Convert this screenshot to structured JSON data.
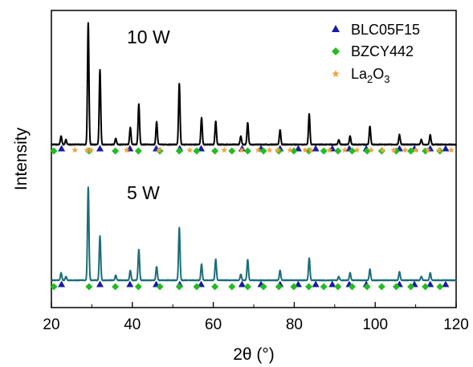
{
  "chart_data": {
    "type": "line",
    "xlabel": "2θ (°)",
    "ylabel": "Intensity",
    "xlim": [
      20,
      120
    ],
    "x_ticks": [
      20,
      40,
      60,
      80,
      100,
      120
    ],
    "grid": false,
    "legend_placement": "top-right",
    "series": [
      {
        "label": "10 W",
        "color": "#000000",
        "peaks": [
          {
            "x": 22.4,
            "h": 0.07
          },
          {
            "x": 23.6,
            "h": 0.04
          },
          {
            "x": 29.1,
            "h": 1.0
          },
          {
            "x": 32.0,
            "h": 0.61
          },
          {
            "x": 35.9,
            "h": 0.05
          },
          {
            "x": 39.5,
            "h": 0.14
          },
          {
            "x": 41.6,
            "h": 0.33
          },
          {
            "x": 46.0,
            "h": 0.19
          },
          {
            "x": 51.6,
            "h": 0.5
          },
          {
            "x": 57.1,
            "h": 0.22
          },
          {
            "x": 60.6,
            "h": 0.19
          },
          {
            "x": 66.8,
            "h": 0.07
          },
          {
            "x": 68.5,
            "h": 0.18
          },
          {
            "x": 76.5,
            "h": 0.12
          },
          {
            "x": 83.7,
            "h": 0.25
          },
          {
            "x": 91.0,
            "h": 0.04
          },
          {
            "x": 93.8,
            "h": 0.07
          },
          {
            "x": 98.7,
            "h": 0.15
          },
          {
            "x": 106.0,
            "h": 0.08
          },
          {
            "x": 111.4,
            "h": 0.04
          },
          {
            "x": 113.6,
            "h": 0.08
          }
        ]
      },
      {
        "label": "5 W",
        "color": "#1b6e79",
        "peaks": [
          {
            "x": 22.4,
            "h": 0.06
          },
          {
            "x": 23.6,
            "h": 0.03
          },
          {
            "x": 29.1,
            "h": 0.76
          },
          {
            "x": 32.0,
            "h": 0.36
          },
          {
            "x": 35.9,
            "h": 0.04
          },
          {
            "x": 39.5,
            "h": 0.08
          },
          {
            "x": 41.6,
            "h": 0.25
          },
          {
            "x": 46.0,
            "h": 0.11
          },
          {
            "x": 51.6,
            "h": 0.43
          },
          {
            "x": 57.1,
            "h": 0.13
          },
          {
            "x": 60.6,
            "h": 0.17
          },
          {
            "x": 66.8,
            "h": 0.05
          },
          {
            "x": 68.5,
            "h": 0.17
          },
          {
            "x": 76.5,
            "h": 0.08
          },
          {
            "x": 83.7,
            "h": 0.18
          },
          {
            "x": 91.0,
            "h": 0.03
          },
          {
            "x": 93.8,
            "h": 0.06
          },
          {
            "x": 98.7,
            "h": 0.09
          },
          {
            "x": 106.0,
            "h": 0.07
          },
          {
            "x": 111.4,
            "h": 0.03
          },
          {
            "x": 113.6,
            "h": 0.06
          }
        ]
      }
    ],
    "reference_markers": [
      {
        "name": "BLC05F15",
        "shape": "triangle",
        "color": "#1a1aa8",
        "positions": [
          22.5,
          32.0,
          39.4,
          45.9,
          51.7,
          57.0,
          67.1,
          71.8,
          76.5,
          81.0,
          85.3,
          89.4,
          93.6,
          97.8,
          106.0,
          109.7,
          113.6,
          117.4
        ]
      },
      {
        "name": "BZCY442",
        "shape": "diamond",
        "color": "#22bb22",
        "positions": [
          20.6,
          29.3,
          35.8,
          41.5,
          46.8,
          51.6,
          55.9,
          60.4,
          64.6,
          68.5,
          72.4,
          76.2,
          79.9,
          83.6,
          87.3,
          90.8,
          94.3,
          98.0,
          101.6,
          105.2,
          108.8,
          112.4,
          116.0
        ]
      },
      {
        "name": "La2O3",
        "shape": "star",
        "color": "#f0a23c",
        "positions": [
          25.8,
          28.8,
          29.8,
          38.6,
          46.6,
          54.2,
          62.7,
          67.0,
          71.1,
          73.9,
          75.9,
          79.0,
          82.7,
          84.1,
          88.7,
          92.5,
          95.5,
          99.0,
          101.8,
          104.6,
          107.4,
          110.0,
          113.0,
          115.8,
          118.8
        ]
      }
    ],
    "legend": [
      {
        "label": "BLC05F15",
        "marker": "triangle",
        "color": "#1a1aa8"
      },
      {
        "label": "BZCY442",
        "marker": "diamond",
        "color": "#22bb22"
      },
      {
        "label": "La₂O₃",
        "label_main": "La",
        "sub1": "2",
        "mid": "O",
        "sub2": "3",
        "marker": "star",
        "color": "#f0a23c"
      }
    ]
  }
}
